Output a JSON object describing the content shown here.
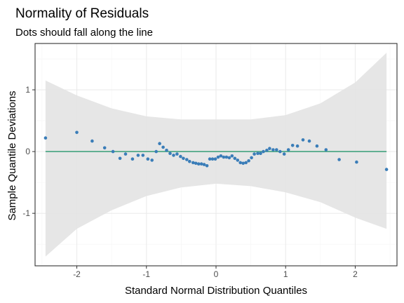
{
  "chart_data": {
    "type": "scatter",
    "title": "Normality of Residuals",
    "subtitle": "Dots should fall along the line",
    "xlabel": "Standard Normal Distribution Quantiles",
    "ylabel": "Sample Quantile Deviations",
    "xlim": [
      -2.6,
      2.6
    ],
    "ylim": [
      -1.85,
      1.75
    ],
    "x_ticks": [
      -2,
      -1,
      0,
      1,
      2
    ],
    "x_tick_labels": [
      "-2",
      "-1",
      "0",
      "1",
      "2"
    ],
    "y_ticks": [
      -1,
      0,
      1
    ],
    "y_tick_labels": [
      "-1",
      "0",
      "1"
    ],
    "grid": true,
    "reference_line": {
      "y": 0,
      "x_from": -2.45,
      "x_to": 2.45
    },
    "confidence_band": {
      "x": [
        -2.45,
        -2.0,
        -1.5,
        -1.0,
        -0.5,
        0.0,
        0.5,
        1.0,
        1.5,
        2.0,
        2.45
      ],
      "upper": [
        1.15,
        0.91,
        0.7,
        0.57,
        0.52,
        0.52,
        0.52,
        0.59,
        0.78,
        1.12,
        1.6
      ],
      "lower": [
        -1.7,
        -1.25,
        -0.95,
        -0.72,
        -0.58,
        -0.52,
        -0.56,
        -0.66,
        -0.82,
        -1.07,
        -1.25
      ]
    },
    "colors": {
      "points": "#3a7db8",
      "line": "#43a47f",
      "band": "#e3e3e3",
      "grid_major": "#ebebeb",
      "grid_minor": "#f5f5f5",
      "panel_border": "#333333"
    },
    "points": [
      {
        "x": -2.45,
        "y": 0.22
      },
      {
        "x": -2.0,
        "y": 0.31
      },
      {
        "x": -1.78,
        "y": 0.17
      },
      {
        "x": -1.6,
        "y": 0.06
      },
      {
        "x": -1.48,
        "y": 0.0
      },
      {
        "x": -1.38,
        "y": -0.11
      },
      {
        "x": -1.3,
        "y": -0.04
      },
      {
        "x": -1.2,
        "y": -0.12
      },
      {
        "x": -1.12,
        "y": -0.06
      },
      {
        "x": -1.05,
        "y": -0.06
      },
      {
        "x": -0.98,
        "y": -0.12
      },
      {
        "x": -0.92,
        "y": -0.14
      },
      {
        "x": -0.86,
        "y": 0.0
      },
      {
        "x": -0.81,
        "y": 0.13
      },
      {
        "x": -0.76,
        "y": 0.07
      },
      {
        "x": -0.71,
        "y": 0.02
      },
      {
        "x": -0.66,
        "y": -0.03
      },
      {
        "x": -0.61,
        "y": -0.06
      },
      {
        "x": -0.56,
        "y": -0.04
      },
      {
        "x": -0.51,
        "y": -0.08
      },
      {
        "x": -0.47,
        "y": -0.11
      },
      {
        "x": -0.42,
        "y": -0.13
      },
      {
        "x": -0.38,
        "y": -0.16
      },
      {
        "x": -0.33,
        "y": -0.18
      },
      {
        "x": -0.29,
        "y": -0.19
      },
      {
        "x": -0.25,
        "y": -0.2
      },
      {
        "x": -0.21,
        "y": -0.2
      },
      {
        "x": -0.17,
        "y": -0.21
      },
      {
        "x": -0.13,
        "y": -0.23
      },
      {
        "x": -0.09,
        "y": -0.12
      },
      {
        "x": -0.05,
        "y": -0.12
      },
      {
        "x": -0.01,
        "y": -0.12
      },
      {
        "x": 0.03,
        "y": -0.09
      },
      {
        "x": 0.07,
        "y": -0.07
      },
      {
        "x": 0.11,
        "y": -0.09
      },
      {
        "x": 0.15,
        "y": -0.09
      },
      {
        "x": 0.19,
        "y": -0.1
      },
      {
        "x": 0.23,
        "y": -0.07
      },
      {
        "x": 0.27,
        "y": -0.11
      },
      {
        "x": 0.31,
        "y": -0.14
      },
      {
        "x": 0.35,
        "y": -0.18
      },
      {
        "x": 0.39,
        "y": -0.19
      },
      {
        "x": 0.43,
        "y": -0.18
      },
      {
        "x": 0.47,
        "y": -0.15
      },
      {
        "x": 0.51,
        "y": -0.1
      },
      {
        "x": 0.55,
        "y": -0.04
      },
      {
        "x": 0.6,
        "y": -0.03
      },
      {
        "x": 0.64,
        "y": -0.03
      },
      {
        "x": 0.68,
        "y": 0.0
      },
      {
        "x": 0.73,
        "y": 0.02
      },
      {
        "x": 0.77,
        "y": 0.05
      },
      {
        "x": 0.82,
        "y": 0.03
      },
      {
        "x": 0.87,
        "y": 0.03
      },
      {
        "x": 0.92,
        "y": 0.0
      },
      {
        "x": 0.98,
        "y": -0.04
      },
      {
        "x": 1.04,
        "y": 0.03
      },
      {
        "x": 1.1,
        "y": 0.1
      },
      {
        "x": 1.17,
        "y": 0.09
      },
      {
        "x": 1.25,
        "y": 0.19
      },
      {
        "x": 1.34,
        "y": 0.17
      },
      {
        "x": 1.45,
        "y": 0.09
      },
      {
        "x": 1.58,
        "y": 0.03
      },
      {
        "x": 1.77,
        "y": -0.13
      },
      {
        "x": 2.02,
        "y": -0.17
      },
      {
        "x": 2.45,
        "y": -0.29
      }
    ]
  }
}
